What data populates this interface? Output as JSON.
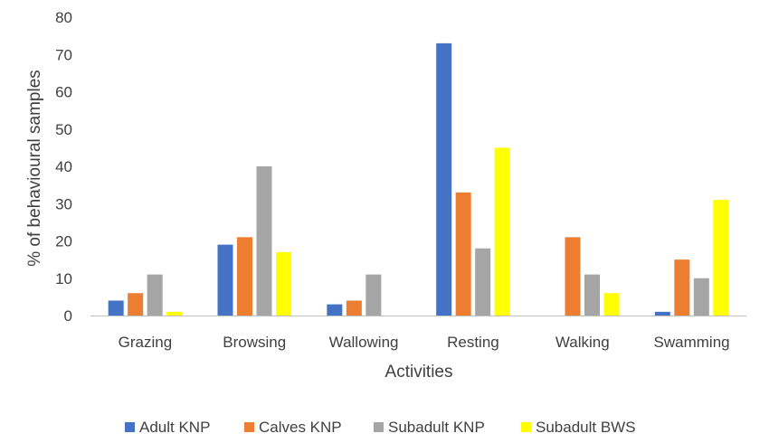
{
  "chart_data": {
    "type": "bar",
    "title": "",
    "xlabel": "Activities",
    "ylabel": "% of behavioural samples",
    "ylim": [
      0,
      80
    ],
    "yticks": [
      0,
      10,
      20,
      30,
      40,
      50,
      60,
      70,
      80
    ],
    "categories": [
      "Grazing",
      "Browsing",
      "Wallowing",
      "Resting",
      "Walking",
      "Swamming"
    ],
    "series": [
      {
        "name": "Adult KNP",
        "color": "#4472C4",
        "values": [
          4,
          19,
          3,
          73,
          0,
          1
        ]
      },
      {
        "name": "Calves KNP",
        "color": "#ED7D31",
        "values": [
          6,
          21,
          4,
          33,
          21,
          15
        ]
      },
      {
        "name": "Subadult KNP",
        "color": "#A5A5A5",
        "values": [
          11,
          40,
          11,
          18,
          11,
          10
        ]
      },
      {
        "name": "Subadult BWS",
        "color": "#FFFF00",
        "values": [
          1,
          17,
          0,
          45,
          6,
          31
        ]
      }
    ],
    "grid": false,
    "legend_position": "bottom"
  }
}
